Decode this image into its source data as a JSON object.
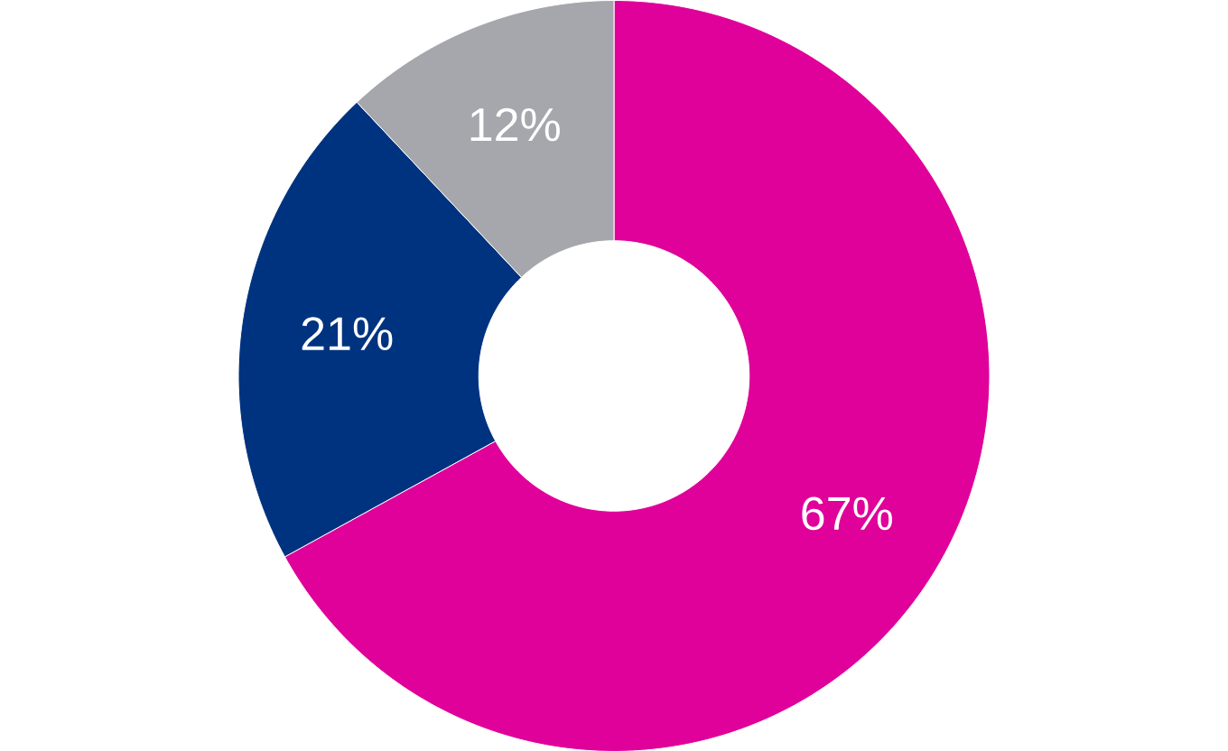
{
  "chart_data": {
    "type": "donut",
    "categories": [
      null,
      null,
      null
    ],
    "values": [
      67,
      21,
      12
    ],
    "colors": [
      "#e0009a",
      "#00337f",
      "#a6a7ac"
    ],
    "value_labels": [
      "67%",
      "21%",
      "12%"
    ]
  }
}
